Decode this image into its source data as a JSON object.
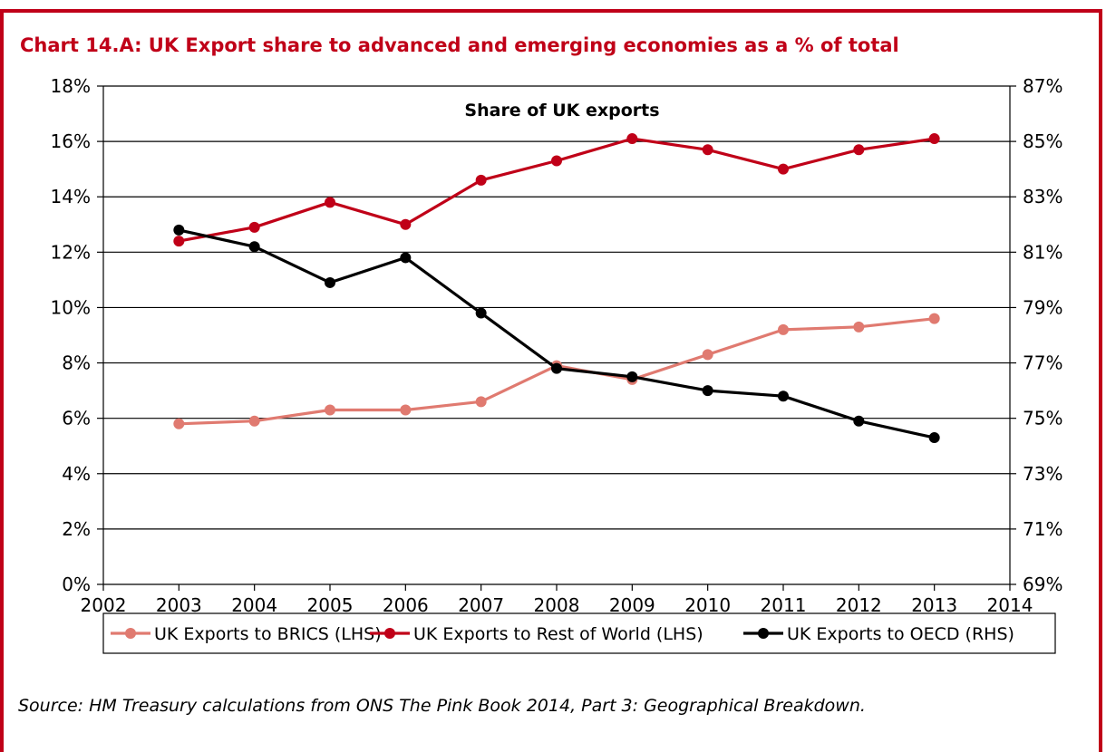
{
  "header": {
    "title": "Chart 14.A: UK Export share to advanced and emerging economies as a % of total"
  },
  "footer": {
    "source": "Source: HM Treasury calculations from ONS The Pink Book 2014, Part 3: Geographical Breakdown."
  },
  "colors": {
    "frame": "#c00018",
    "brics": "#e07a70",
    "row": "#c00018",
    "oecd": "#000000"
  },
  "chart_data": {
    "type": "line",
    "title": "Share of UK exports",
    "xlabel": "",
    "ylabel": "",
    "x": [
      2003,
      2004,
      2005,
      2006,
      2007,
      2008,
      2009,
      2010,
      2011,
      2012,
      2013
    ],
    "xlim": [
      2002,
      2014
    ],
    "x_ticks": [
      "2002",
      "2003",
      "2004",
      "2005",
      "2006",
      "2007",
      "2008",
      "2009",
      "2010",
      "2011",
      "2012",
      "2013",
      "2014"
    ],
    "y_left": {
      "lim": [
        0,
        18
      ],
      "ticks": [
        "0%",
        "2%",
        "4%",
        "6%",
        "8%",
        "10%",
        "12%",
        "14%",
        "16%",
        "18%"
      ]
    },
    "y_right": {
      "lim": [
        69,
        87
      ],
      "ticks": [
        "69%",
        "71%",
        "73%",
        "75%",
        "77%",
        "79%",
        "81%",
        "83%",
        "85%",
        "87%"
      ]
    },
    "grid": true,
    "legend_position": "bottom",
    "series": [
      {
        "name": "UK Exports to BRICS (LHS)",
        "axis": "left",
        "color": "#e07a70",
        "values": [
          5.8,
          5.9,
          6.3,
          6.3,
          6.6,
          7.9,
          7.4,
          8.3,
          9.2,
          9.3,
          9.6
        ]
      },
      {
        "name": "UK Exports to Rest of World (LHS)",
        "axis": "left",
        "color": "#c00018",
        "values": [
          12.4,
          12.9,
          13.8,
          13.0,
          14.6,
          15.3,
          16.1,
          15.7,
          15.0,
          15.7,
          16.1
        ]
      },
      {
        "name": "UK Exports to OECD (RHS)",
        "axis": "right",
        "color": "#000000",
        "values": [
          81.8,
          81.2,
          79.9,
          80.8,
          78.8,
          76.8,
          76.5,
          76.0,
          75.8,
          74.9,
          74.3
        ]
      }
    ]
  }
}
